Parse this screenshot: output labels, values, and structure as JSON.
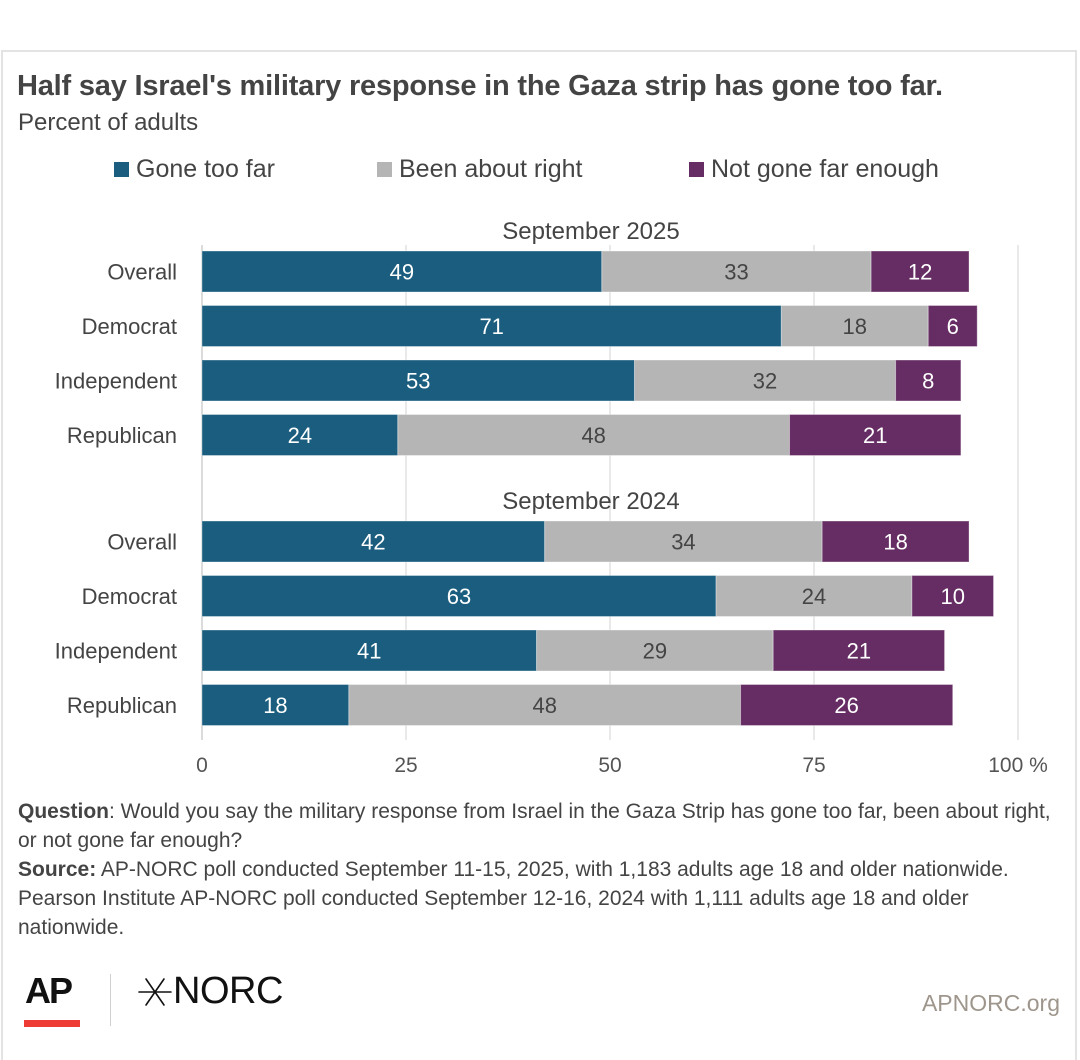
{
  "header": {
    "title": "Half say Israel's military response in the Gaza strip has gone too far.",
    "subtitle": "Percent of adults"
  },
  "legend": [
    {
      "label": "Gone too far",
      "color": "#1a5d7e"
    },
    {
      "label": "Been about right",
      "color": "#b5b5b5"
    },
    {
      "label": "Not gone far enough",
      "color": "#652d63"
    }
  ],
  "chart_data": {
    "type": "bar",
    "orientation": "horizontal",
    "stacked": true,
    "title": "Half say Israel's military response in the Gaza strip has gone too far.",
    "subtitle": "Percent of adults",
    "xlabel": "",
    "ylabel": "",
    "xlim": [
      0,
      100
    ],
    "x_ticks": [
      "0",
      "25",
      "50",
      "75",
      "100 %"
    ],
    "x_tick_values": [
      0,
      25,
      50,
      75,
      100
    ],
    "grid": true,
    "legend_position": "top",
    "series_names": [
      "Gone too far",
      "Been about right",
      "Not gone far enough"
    ],
    "series_colors": [
      "#1a5d7e",
      "#b5b5b5",
      "#652d63"
    ],
    "label_colors": [
      "#ffffff",
      "#444444",
      "#ffffff"
    ],
    "groups": [
      {
        "name": "September 2025",
        "categories": [
          "Overall",
          "Democrat",
          "Independent",
          "Republican"
        ],
        "series": [
          {
            "name": "Gone too far",
            "values": [
              49,
              71,
              53,
              24
            ]
          },
          {
            "name": "Been about right",
            "values": [
              33,
              18,
              32,
              48
            ]
          },
          {
            "name": "Not gone far enough",
            "values": [
              12,
              6,
              8,
              21
            ]
          }
        ]
      },
      {
        "name": "September 2024",
        "categories": [
          "Overall",
          "Democrat",
          "Independent",
          "Republican"
        ],
        "series": [
          {
            "name": "Gone too far",
            "values": [
              42,
              63,
              41,
              18
            ]
          },
          {
            "name": "Been about right",
            "values": [
              34,
              24,
              29,
              48
            ]
          },
          {
            "name": "Not gone far enough",
            "values": [
              18,
              10,
              21,
              26
            ]
          }
        ]
      }
    ]
  },
  "footer": {
    "question_label": "Question",
    "question_text": ": Would you say the military response from Israel in the Gaza Strip has gone too far, been about right, or not gone far enough?",
    "source_label": "Source:",
    "source_text": " AP-NORC poll conducted September 11-15, 2025, with 1,183 adults age 18 and older nationwide. Pearson Institute AP-NORC poll conducted September 12-16, 2024 with 1,111 adults age 18 and older nationwide.",
    "logo_ap": "AP",
    "logo_norc": "NORC",
    "site": "APNORC.org",
    "accent_red": "#ee3b33"
  }
}
